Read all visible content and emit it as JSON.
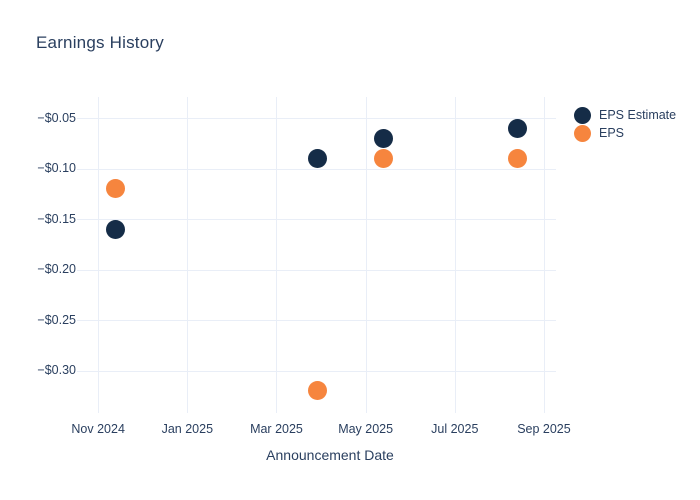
{
  "chart_data": {
    "type": "scatter",
    "title": "Earnings History",
    "xlabel": "Announcement Date",
    "ylabel": "",
    "grid": true,
    "legend_position": "top-right",
    "colors": {
      "background": "#ffffff",
      "grid": "#e9eef7",
      "text": "#2a3f5f",
      "eps_estimate": "#152c47",
      "eps": "#f6853e"
    },
    "x_axis": {
      "unit": "months since Nov 2024",
      "range": [
        -0.34,
        10.27
      ],
      "ticks": [
        {
          "label": "Nov 2024",
          "m": 0
        },
        {
          "label": "Jan 2025",
          "m": 2
        },
        {
          "label": "Mar 2025",
          "m": 4
        },
        {
          "label": "May 2025",
          "m": 6
        },
        {
          "label": "Jul 2025",
          "m": 8
        },
        {
          "label": "Sep 2025",
          "m": 10
        }
      ]
    },
    "y_axis": {
      "range": [
        -0.337,
        -0.029
      ],
      "ticks": [
        {
          "label": "−$0.05",
          "v": -0.05
        },
        {
          "label": "−$0.10",
          "v": -0.1
        },
        {
          "label": "−$0.15",
          "v": -0.15
        },
        {
          "label": "−$0.20",
          "v": -0.2
        },
        {
          "label": "−$0.25",
          "v": -0.25
        },
        {
          "label": "−$0.30",
          "v": -0.3
        }
      ]
    },
    "series": [
      {
        "name": "EPS Estimate",
        "color": "#152c47",
        "points": [
          {
            "approx_date": "mid-Nov 2024",
            "m": 0.4,
            "y": -0.16
          },
          {
            "approx_date": "early-Apr 2025",
            "m": 4.93,
            "y": -0.09
          },
          {
            "approx_date": "mid-May 2025",
            "m": 6.4,
            "y": -0.07
          },
          {
            "approx_date": "mid-Aug 2025",
            "m": 9.4,
            "y": -0.06
          }
        ]
      },
      {
        "name": "EPS",
        "color": "#f6853e",
        "points": [
          {
            "approx_date": "mid-Nov 2024",
            "m": 0.4,
            "y": -0.12
          },
          {
            "approx_date": "early-Apr 2025",
            "m": 4.93,
            "y": -0.32
          },
          {
            "approx_date": "mid-May 2025",
            "m": 6.4,
            "y": -0.09
          },
          {
            "approx_date": "mid-Aug 2025",
            "m": 9.4,
            "y": -0.09
          }
        ]
      }
    ]
  }
}
